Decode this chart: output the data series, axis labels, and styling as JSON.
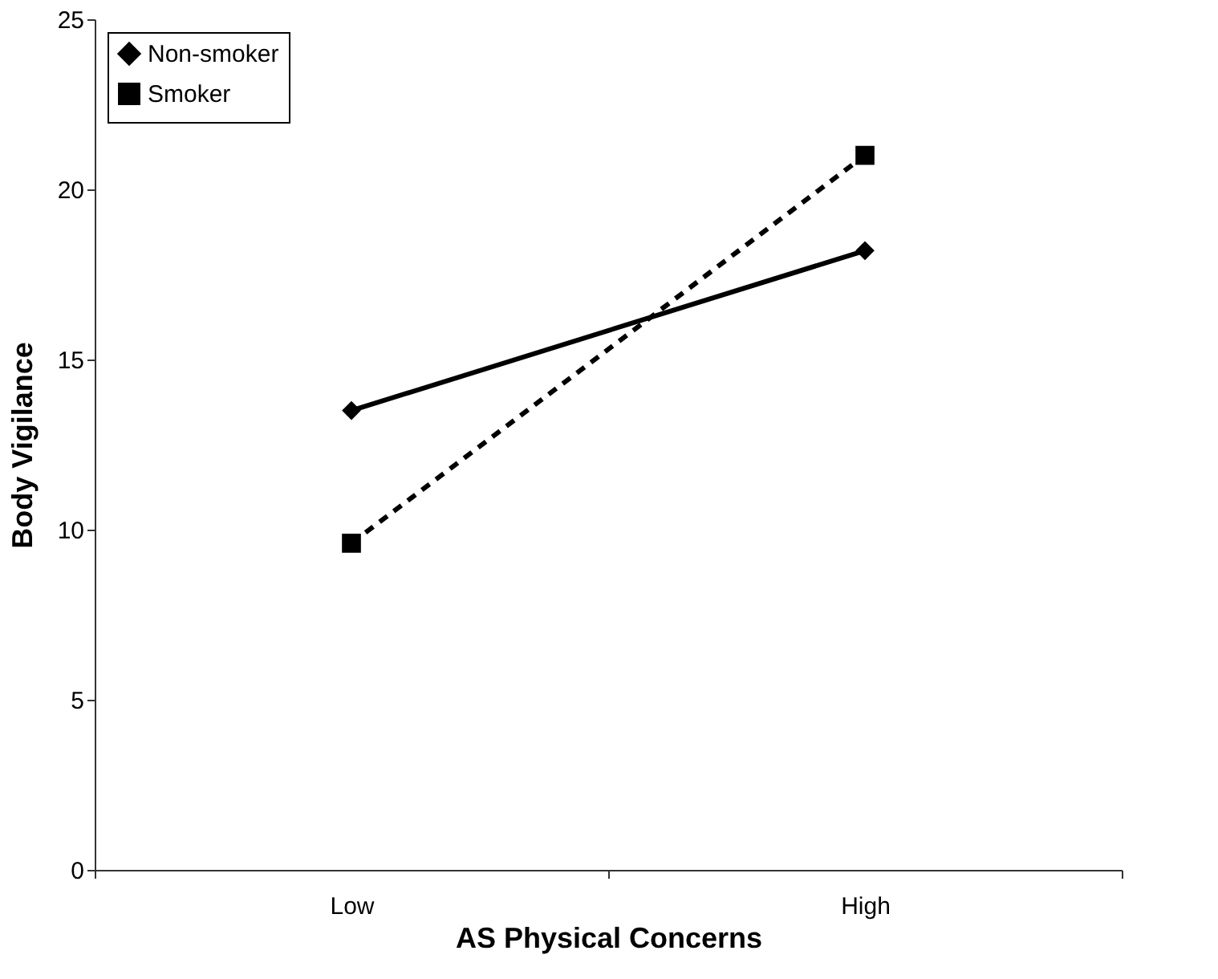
{
  "chart_data": {
    "type": "line",
    "xlabel": "AS Physical Concerns",
    "ylabel": "Body Vigilance",
    "categories": [
      "Low",
      "High"
    ],
    "series": [
      {
        "name": "Non-smoker",
        "color": "#000000",
        "values": [
          13.5,
          18.2
        ],
        "marker": "diamond",
        "line_style": "solid"
      },
      {
        "name": "Smoker",
        "color": "#000000",
        "values": [
          9.6,
          21.0
        ],
        "marker": "square",
        "line_style": "dashed"
      }
    ],
    "ylim": [
      0,
      25
    ],
    "yticks": [
      0,
      5,
      10,
      15,
      20,
      25
    ],
    "grid": false,
    "legend": "top left"
  }
}
